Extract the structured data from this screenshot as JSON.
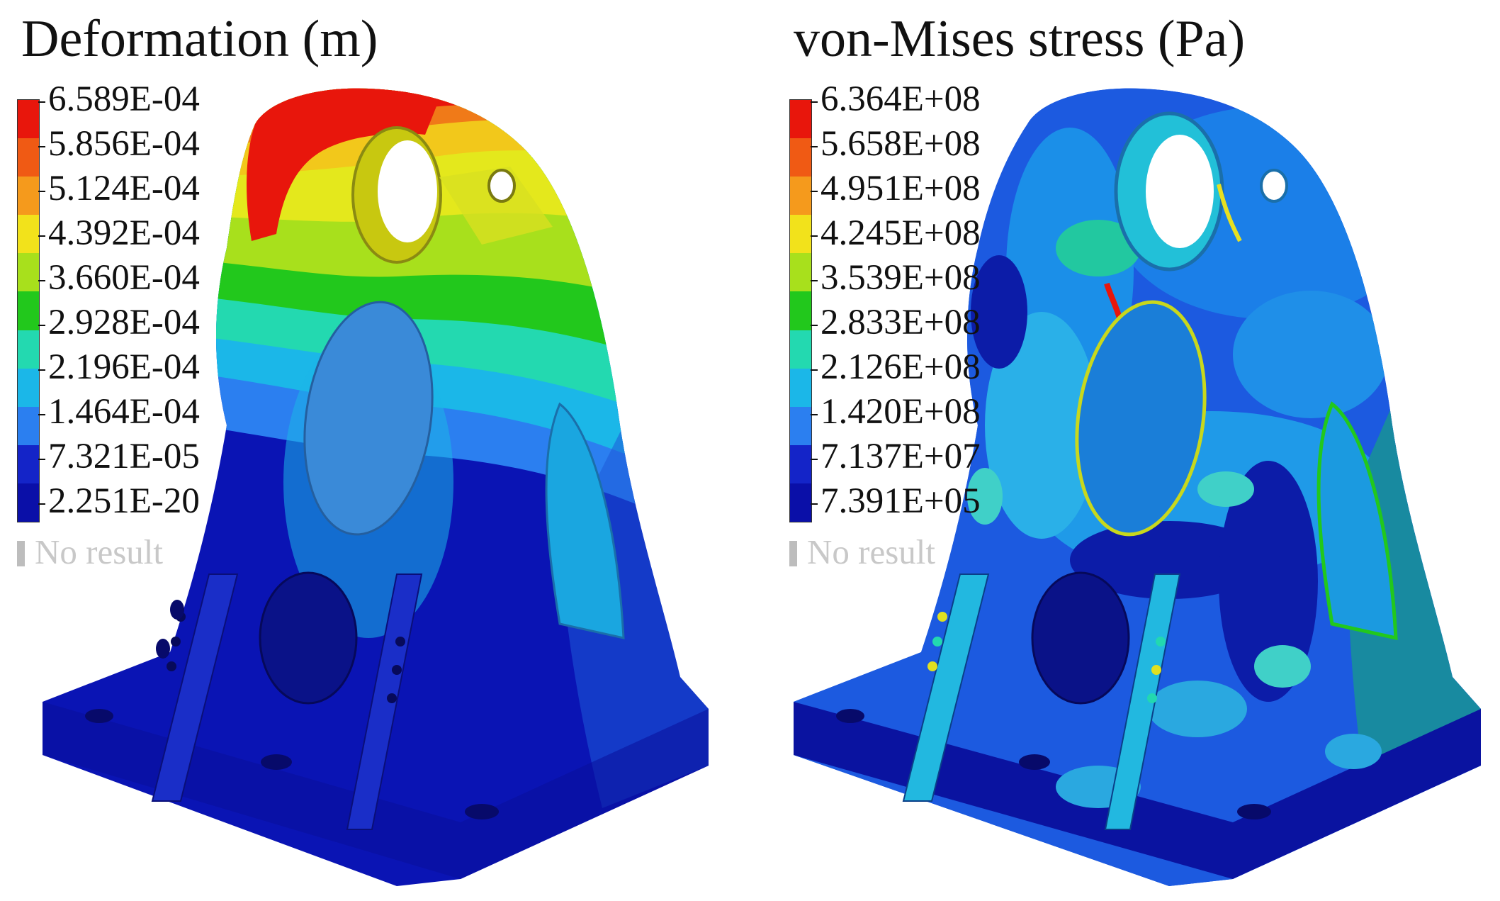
{
  "panels": [
    {
      "title": "Deformation (m)",
      "legend": {
        "labels": [
          "6.589E-04",
          "5.856E-04",
          "5.124E-04",
          "4.392E-04",
          "3.660E-04",
          "2.928E-04",
          "2.196E-04",
          "1.464E-04",
          "7.321E-05",
          "2.251E-20"
        ],
        "colors": [
          "#e8160c",
          "#f05a14",
          "#f59a1c",
          "#f2e21b",
          "#a8e01c",
          "#22c81c",
          "#23d9b0",
          "#1bb7e8",
          "#2b7ff0",
          "#1424c8",
          "#0a0fa8"
        ],
        "no_result": "No result"
      }
    },
    {
      "title": "von-Mises stress (Pa)",
      "legend": {
        "labels": [
          "6.364E+08",
          "5.658E+08",
          "4.951E+08",
          "4.245E+08",
          "3.539E+08",
          "2.833E+08",
          "2.126E+08",
          "1.420E+08",
          "7.137E+07",
          "7.391E+05"
        ],
        "colors": [
          "#e8160c",
          "#f05a14",
          "#f59a1c",
          "#f2e21b",
          "#a8e01c",
          "#22c81c",
          "#23d9b0",
          "#1bb7e8",
          "#2b7ff0",
          "#1424c8",
          "#0a0fa8"
        ],
        "no_result": "No result"
      }
    }
  ]
}
